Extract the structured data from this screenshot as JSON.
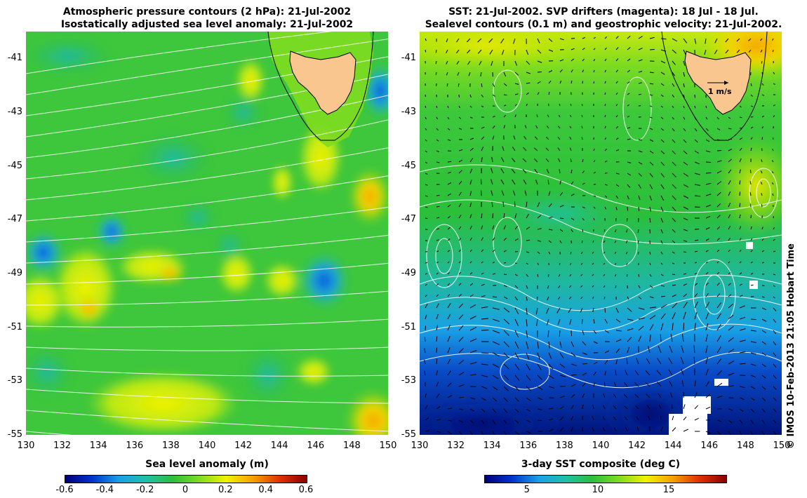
{
  "left_panel": {
    "title_line1": "Atmospheric pressure contours (2 hPa): 21-Jul-2002",
    "title_line2": "Isostatically adjusted sea level anomaly: 21-Jul-2002",
    "colorbar_title": "Sea level anomaly (m)",
    "colorbar_ticks": [
      "-0.6",
      "-0.4",
      "-0.2",
      "0",
      "0.2",
      "0.4",
      "0.6"
    ],
    "colorbar_tick_values": [
      -0.6,
      -0.4,
      -0.2,
      0,
      0.2,
      0.4,
      0.6
    ],
    "colorbar_range": [
      -0.6,
      0.6
    ],
    "colorbar_colors": [
      "#00007a",
      "#0033cc",
      "#19a0e6",
      "#1fc0a8",
      "#2bbf3a",
      "#7fdc20",
      "#f2f200",
      "#f5a000",
      "#e03000",
      "#8a0000"
    ]
  },
  "right_panel": {
    "title_line1": "SST: 21-Jul-2002. SVP drifters (magenta): 18 Jul - 18 Jul.",
    "title_line2": "Sealevel contours (0.1 m) and geostrophic velocity: 21-Jul-2002.",
    "scale_label": "1 m/s",
    "colorbar_title": "3-day SST composite (deg C)",
    "colorbar_ticks": [
      "5",
      "10",
      "15"
    ],
    "colorbar_tick_values": [
      5,
      10,
      15
    ],
    "colorbar_range": [
      2,
      19
    ],
    "colorbar_colors": [
      "#00007a",
      "#0033cc",
      "#19a0e6",
      "#1fc0a8",
      "#2bbf3a",
      "#7fdc20",
      "#f2f200",
      "#f5a000",
      "#e03000",
      "#8a0000"
    ]
  },
  "axes": {
    "lat_ticks": [
      "-41",
      "-43",
      "-45",
      "-47",
      "-49",
      "-51",
      "-53",
      "-55"
    ],
    "lat_values": [
      -41,
      -43,
      -45,
      -47,
      -49,
      -51,
      -53,
      -55
    ],
    "lon_ticks": [
      "130",
      "132",
      "134",
      "136",
      "138",
      "140",
      "142",
      "144",
      "146",
      "148",
      "150"
    ],
    "lon_values": [
      130,
      132,
      134,
      136,
      138,
      140,
      142,
      144,
      146,
      148,
      150
    ],
    "lat_range": [
      -55,
      -40
    ],
    "lon_range": [
      130,
      150
    ]
  },
  "credit": "© IMOS 10-Feb-2013 21:05 Hobart Time",
  "colors": {
    "land": "#f9c690",
    "coast": "#000000",
    "contour": "#ffffff",
    "shelf": "#7fdc20"
  }
}
